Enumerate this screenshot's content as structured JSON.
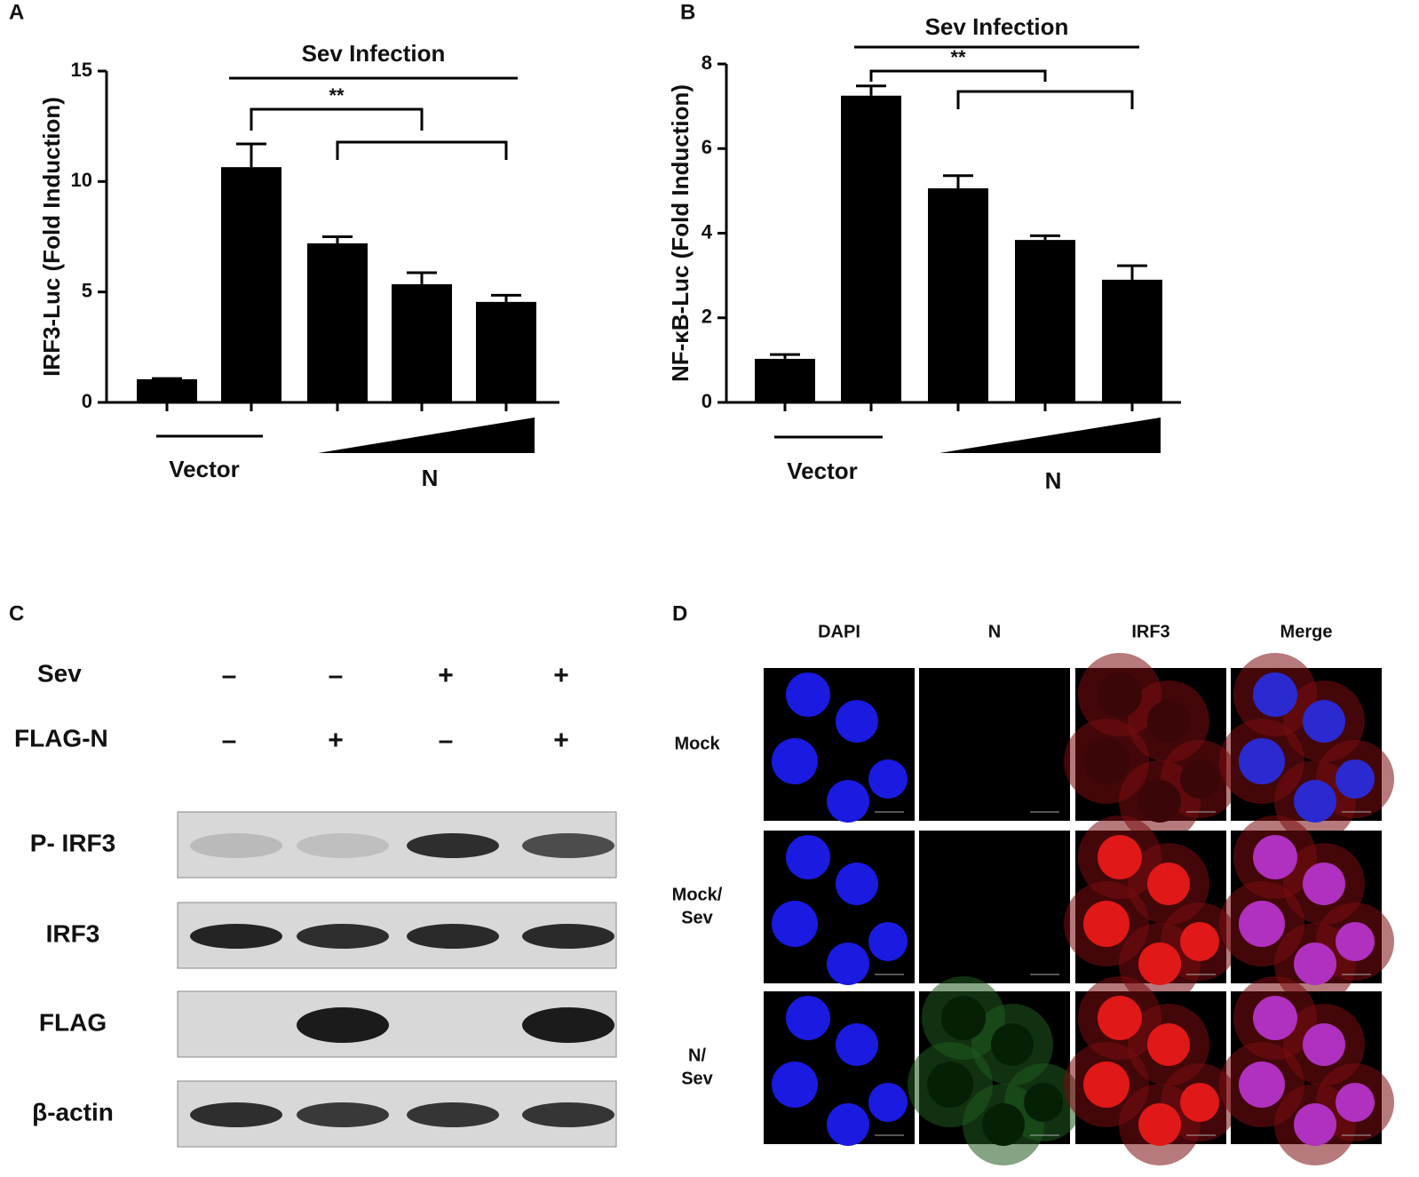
{
  "chart_data": [
    {
      "type": "bar",
      "panel": "A",
      "y_label": "IRF3-Luc (Fold Induction)",
      "categories": [
        null,
        null,
        null,
        null,
        null
      ],
      "values": [
        1.05,
        10.65,
        7.2,
        5.35,
        4.55
      ],
      "errors": [
        0.03,
        1.05,
        0.3,
        0.52,
        0.3
      ],
      "color": "#000000",
      "ylim": [
        0,
        15
      ],
      "yticks": [
        0,
        5,
        10,
        15
      ],
      "group_label": "Sev Infection",
      "significance": "**",
      "vector_label": "Vector",
      "dose_label": "N"
    },
    {
      "type": "bar",
      "panel": "B",
      "y_label": "NF-κB-Luc (Fold Induction)",
      "categories": [
        null,
        null,
        null,
        null,
        null
      ],
      "values": [
        1.03,
        7.25,
        5.06,
        3.84,
        2.9
      ],
      "errors": [
        0.1,
        0.23,
        0.3,
        0.1,
        0.33
      ],
      "color": "#000000",
      "ylim": [
        0,
        8
      ],
      "yticks": [
        0,
        2,
        4,
        6,
        8
      ],
      "group_label": "Sev Infection",
      "significance": "**",
      "vector_label": "Vector",
      "dose_label": "N"
    }
  ],
  "western_blot": {
    "panel": "C",
    "conditions": [
      {
        "label": "Sev",
        "signs": [
          "–",
          "–",
          "+",
          "+"
        ]
      },
      {
        "label": "FLAG-N",
        "signs": [
          "–",
          "+",
          "–",
          "+"
        ]
      }
    ],
    "blots": [
      "P- IRF3",
      "IRF3",
      "FLAG",
      "β-actin"
    ]
  },
  "microscopy": {
    "panel": "D",
    "columns": [
      "DAPI",
      "N",
      "IRF3",
      "Merge"
    ],
    "rows": [
      [
        "Mock"
      ],
      [
        "Mock/",
        "Sev"
      ],
      [
        "N/",
        "Sev"
      ]
    ]
  }
}
